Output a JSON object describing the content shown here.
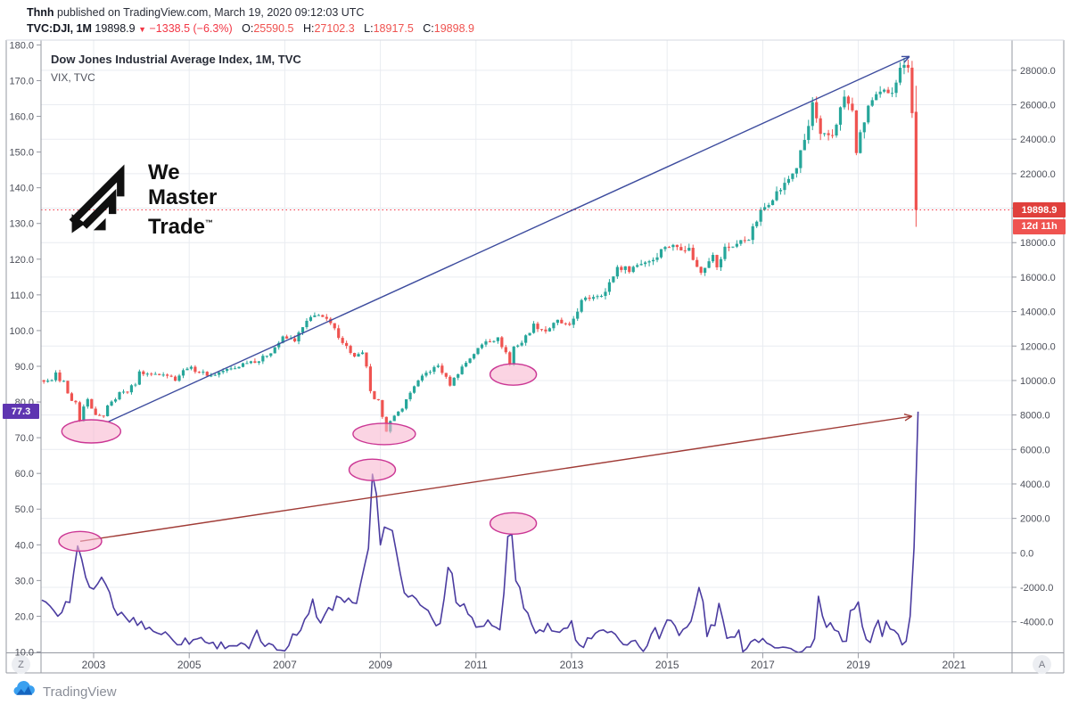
{
  "header": {
    "line1": {
      "author": "Thnh",
      "rest": " published on TradingView.com, March 19, 2020 09:12:03 UTC"
    },
    "line2": {
      "symbol": "TVC:DJI, 1M",
      "last": "19898.9",
      "arrow": "▼",
      "change": "−1338.5 (−6.3%)",
      "ohlc": [
        {
          "k": "O:",
          "v": "25590.5"
        },
        {
          "k": "H:",
          "v": "27102.3"
        },
        {
          "k": "L:",
          "v": "18917.5"
        },
        {
          "k": "C:",
          "v": "19898.9"
        }
      ]
    }
  },
  "legend": {
    "line1": "Dow Jones Industrial Average Index, 1M, TVC",
    "line2": "VIX, TVC"
  },
  "watermark": {
    "l1": "We",
    "l2": "Master",
    "l3": "Trade",
    "tm": "™"
  },
  "corner_buttons": {
    "left": "Z",
    "right": "A"
  },
  "footer": {
    "brand": "TradingView"
  },
  "axis_labels": {
    "vix_current": {
      "text": "77.3",
      "value": 77.3,
      "bg": "#5e35b1"
    },
    "price": {
      "text": "19898.9",
      "value": 19898.9,
      "bg": "#e0403c"
    },
    "countdown": {
      "text": "12d 11h",
      "bg": "#ef5350"
    }
  },
  "chart_data": {
    "type": "candlestick+line",
    "title": "Dow Jones Industrial Average Index, 1M, TVC",
    "overlay": "VIX, TVC",
    "grid": true,
    "x_axis": {
      "ticks": [
        2003,
        2005,
        2007,
        2009,
        2011,
        2013,
        2015,
        2017,
        2019,
        2021
      ],
      "range": [
        2001.9,
        2022.2
      ]
    },
    "right_axis": {
      "name": "DJI price",
      "ticks": [
        28000,
        26000,
        24000,
        22000,
        20000,
        18000,
        16000,
        14000,
        12000,
        10000,
        8000,
        6000,
        4000,
        2000,
        0,
        -2000,
        -4000
      ],
      "range": [
        -5800,
        29750
      ]
    },
    "left_axis": {
      "name": "VIX",
      "ticks": [
        180,
        170,
        160,
        150,
        140,
        130,
        120,
        110,
        100,
        90,
        80,
        70,
        60,
        50,
        40,
        30,
        20,
        10
      ],
      "range": [
        9.75,
        181.35
      ]
    },
    "price_line": {
      "value": 19898.9,
      "color": "#f23645",
      "style": "dotted"
    },
    "series": [
      {
        "name": "TVC:DJI",
        "type": "candlestick",
        "axis": "right",
        "up_color": "#26a69a",
        "down_color": "#ef5350",
        "last_candle": {
          "o": 25590.5,
          "h": 27102.3,
          "l": 18917.5,
          "c": 19898.9
        },
        "monthly_close_anchors": [
          [
            2001.7,
            9545
          ],
          [
            2001.83,
            9852
          ],
          [
            2001.92,
            10022
          ],
          [
            2002.08,
            9920
          ],
          [
            2002.17,
            10106
          ],
          [
            2002.25,
            10404
          ],
          [
            2002.33,
            9946
          ],
          [
            2002.42,
            9925
          ],
          [
            2002.5,
            9243
          ],
          [
            2002.58,
            8737
          ],
          [
            2002.67,
            8664
          ],
          [
            2002.75,
            7592
          ],
          [
            2002.83,
            8397
          ],
          [
            2002.92,
            8896
          ],
          [
            2003.0,
            8342
          ],
          [
            2003.08,
            8054
          ],
          [
            2003.17,
            7891
          ],
          [
            2003.25,
            7992
          ],
          [
            2003.33,
            8480
          ],
          [
            2003.42,
            8850
          ],
          [
            2003.5,
            8985
          ],
          [
            2003.58,
            9234
          ],
          [
            2003.67,
            9416
          ],
          [
            2003.75,
            9275
          ],
          [
            2003.83,
            9801
          ],
          [
            2003.92,
            9782
          ],
          [
            2004.0,
            10454
          ],
          [
            2004.25,
            10357
          ],
          [
            2004.5,
            10435
          ],
          [
            2004.75,
            10080
          ],
          [
            2005.0,
            10783
          ],
          [
            2005.25,
            10504
          ],
          [
            2005.5,
            10275
          ],
          [
            2005.75,
            10569
          ],
          [
            2006.0,
            10718
          ],
          [
            2006.25,
            11109
          ],
          [
            2006.5,
            11150
          ],
          [
            2006.75,
            11679
          ],
          [
            2007.0,
            12463
          ],
          [
            2007.25,
            12354
          ],
          [
            2007.5,
            13409
          ],
          [
            2007.75,
            13896
          ],
          [
            2008.0,
            13265
          ],
          [
            2008.25,
            12263
          ],
          [
            2008.5,
            11350
          ],
          [
            2008.67,
            11544
          ],
          [
            2008.75,
            10851
          ],
          [
            2008.83,
            9325
          ],
          [
            2008.92,
            8829
          ],
          [
            2009.0,
            8776
          ],
          [
            2009.08,
            8001
          ],
          [
            2009.17,
            7063
          ],
          [
            2009.25,
            7609
          ],
          [
            2009.5,
            8447
          ],
          [
            2009.75,
            9712
          ],
          [
            2010.0,
            10428
          ],
          [
            2010.25,
            10857
          ],
          [
            2010.5,
            9774
          ],
          [
            2010.75,
            10788
          ],
          [
            2011.0,
            11578
          ],
          [
            2011.25,
            12320
          ],
          [
            2011.5,
            12414
          ],
          [
            2011.67,
            11614
          ],
          [
            2011.75,
            10913
          ],
          [
            2011.83,
            11955
          ],
          [
            2012.0,
            12218
          ],
          [
            2012.25,
            13212
          ],
          [
            2012.5,
            12880
          ],
          [
            2012.75,
            13437
          ],
          [
            2013.0,
            13104
          ],
          [
            2013.25,
            14579
          ],
          [
            2013.5,
            14910
          ],
          [
            2013.75,
            15130
          ],
          [
            2014.0,
            16577
          ],
          [
            2014.25,
            16458
          ],
          [
            2014.5,
            16827
          ],
          [
            2014.75,
            17043
          ],
          [
            2015.0,
            17823
          ],
          [
            2015.25,
            17776
          ],
          [
            2015.5,
            17620
          ],
          [
            2015.67,
            16528
          ],
          [
            2015.75,
            16285
          ],
          [
            2016.0,
            17425
          ],
          [
            2016.08,
            16466
          ],
          [
            2016.25,
            17685
          ],
          [
            2016.5,
            17930
          ],
          [
            2016.75,
            18308
          ],
          [
            2017.0,
            19763
          ],
          [
            2017.25,
            20663
          ],
          [
            2017.5,
            21350
          ],
          [
            2017.75,
            22405
          ],
          [
            2018.0,
            24719
          ],
          [
            2018.08,
            26149
          ],
          [
            2018.17,
            25029
          ],
          [
            2018.25,
            24103
          ],
          [
            2018.5,
            24271
          ],
          [
            2018.75,
            26458
          ],
          [
            2018.92,
            25538
          ],
          [
            2019.0,
            23327
          ],
          [
            2019.25,
            25929
          ],
          [
            2019.5,
            26600
          ],
          [
            2019.75,
            26917
          ],
          [
            2020.0,
            28538
          ],
          [
            2020.08,
            28256
          ],
          [
            2020.17,
            25409
          ],
          [
            2020.25,
            19898.9
          ]
        ]
      },
      {
        "name": "VIX",
        "type": "line",
        "axis": "left",
        "color": "#4b3ca0",
        "last_value": 77.3,
        "anchors": [
          [
            2001.7,
            32
          ],
          [
            2001.83,
            26
          ],
          [
            2001.92,
            24
          ],
          [
            2002.08,
            22
          ],
          [
            2002.17,
            22
          ],
          [
            2002.25,
            19
          ],
          [
            2002.33,
            20
          ],
          [
            2002.42,
            23
          ],
          [
            2002.5,
            25
          ],
          [
            2002.58,
            32
          ],
          [
            2002.67,
            40
          ],
          [
            2002.75,
            36
          ],
          [
            2002.83,
            31
          ],
          [
            2002.92,
            28
          ],
          [
            2003.0,
            27
          ],
          [
            2003.08,
            29
          ],
          [
            2003.17,
            31
          ],
          [
            2003.25,
            29
          ],
          [
            2003.42,
            22
          ],
          [
            2003.5,
            21
          ],
          [
            2003.75,
            19
          ],
          [
            2004.0,
            18
          ],
          [
            2004.25,
            16
          ],
          [
            2004.5,
            15
          ],
          [
            2004.75,
            13
          ],
          [
            2005.0,
            13
          ],
          [
            2005.25,
            14
          ],
          [
            2005.5,
            12
          ],
          [
            2005.75,
            12
          ],
          [
            2006.0,
            12
          ],
          [
            2006.25,
            11
          ],
          [
            2006.42,
            15
          ],
          [
            2006.5,
            13
          ],
          [
            2006.75,
            11
          ],
          [
            2007.0,
            11
          ],
          [
            2007.17,
            15
          ],
          [
            2007.25,
            14
          ],
          [
            2007.58,
            24
          ],
          [
            2007.75,
            18
          ],
          [
            2007.92,
            23
          ],
          [
            2008.0,
            22
          ],
          [
            2008.08,
            26
          ],
          [
            2008.25,
            25
          ],
          [
            2008.5,
            24
          ],
          [
            2008.75,
            39
          ],
          [
            2008.83,
            60
          ],
          [
            2008.92,
            54
          ],
          [
            2009.0,
            40
          ],
          [
            2009.08,
            45
          ],
          [
            2009.25,
            44
          ],
          [
            2009.5,
            26
          ],
          [
            2009.75,
            25
          ],
          [
            2010.0,
            21
          ],
          [
            2010.25,
            17
          ],
          [
            2010.42,
            34
          ],
          [
            2010.5,
            32
          ],
          [
            2010.58,
            25
          ],
          [
            2010.75,
            23
          ],
          [
            2011.0,
            17
          ],
          [
            2011.25,
            18
          ],
          [
            2011.5,
            16
          ],
          [
            2011.58,
            25
          ],
          [
            2011.67,
            43
          ],
          [
            2011.75,
            43
          ],
          [
            2011.83,
            30
          ],
          [
            2011.92,
            28
          ],
          [
            2012.0,
            23
          ],
          [
            2012.25,
            15
          ],
          [
            2012.5,
            17
          ],
          [
            2012.75,
            15
          ],
          [
            2012.92,
            16
          ],
          [
            2013.0,
            18
          ],
          [
            2013.08,
            14
          ],
          [
            2013.25,
            12
          ],
          [
            2013.5,
            16
          ],
          [
            2013.75,
            16
          ],
          [
            2014.0,
            13
          ],
          [
            2014.25,
            13
          ],
          [
            2014.5,
            11
          ],
          [
            2014.75,
            16
          ],
          [
            2014.83,
            14
          ],
          [
            2015.0,
            19
          ],
          [
            2015.08,
            20
          ],
          [
            2015.25,
            15
          ],
          [
            2015.5,
            18
          ],
          [
            2015.67,
            28
          ],
          [
            2015.75,
            24
          ],
          [
            2015.83,
            15
          ],
          [
            2016.0,
            18
          ],
          [
            2016.08,
            23
          ],
          [
            2016.17,
            20
          ],
          [
            2016.25,
            13
          ],
          [
            2016.5,
            15
          ],
          [
            2016.58,
            11
          ],
          [
            2016.75,
            13
          ],
          [
            2017.0,
            14
          ],
          [
            2017.25,
            12
          ],
          [
            2017.5,
            11
          ],
          [
            2017.75,
            9.5
          ],
          [
            2017.92,
            11
          ],
          [
            2018.0,
            11
          ],
          [
            2018.08,
            13
          ],
          [
            2018.17,
            25
          ],
          [
            2018.25,
            19
          ],
          [
            2018.5,
            16
          ],
          [
            2018.75,
            12
          ],
          [
            2018.83,
            21
          ],
          [
            2019.0,
            25
          ],
          [
            2019.08,
            16
          ],
          [
            2019.25,
            13
          ],
          [
            2019.42,
            19
          ],
          [
            2019.5,
            15
          ],
          [
            2019.58,
            18
          ],
          [
            2019.67,
            16
          ],
          [
            2019.75,
            16
          ],
          [
            2019.92,
            12.6
          ],
          [
            2020.0,
            13.8
          ],
          [
            2020.08,
            18.8
          ],
          [
            2020.17,
            40
          ],
          [
            2020.25,
            77.3
          ]
        ]
      }
    ],
    "annotations": {
      "trendlines": [
        {
          "axis": "right",
          "from": [
            2003.3,
            7600
          ],
          "to": [
            2020.07,
            28800
          ],
          "color": "#3d4c9e",
          "arrow": true
        },
        {
          "axis": "left",
          "from": [
            2002.72,
            41
          ],
          "to": [
            2020.12,
            76
          ],
          "color": "#a03b36",
          "arrow": true
        }
      ],
      "ellipse_style": {
        "fill": "#f9b8d0",
        "opacity": 0.6,
        "stroke": "#cb3694"
      },
      "ellipses": [
        {
          "axis": "right",
          "t": 2002.95,
          "v": 7050,
          "rx": 33,
          "ry": 13
        },
        {
          "axis": "right",
          "t": 2009.08,
          "v": 6900,
          "rx": 35,
          "ry": 12
        },
        {
          "axis": "right",
          "t": 2011.78,
          "v": 10350,
          "rx": 26,
          "ry": 12
        },
        {
          "axis": "left",
          "t": 2002.72,
          "v": 41,
          "rx": 24,
          "ry": 11
        },
        {
          "axis": "left",
          "t": 2008.83,
          "v": 61,
          "rx": 26,
          "ry": 12
        },
        {
          "axis": "left",
          "t": 2011.78,
          "v": 46,
          "rx": 26,
          "ry": 12
        }
      ]
    }
  }
}
